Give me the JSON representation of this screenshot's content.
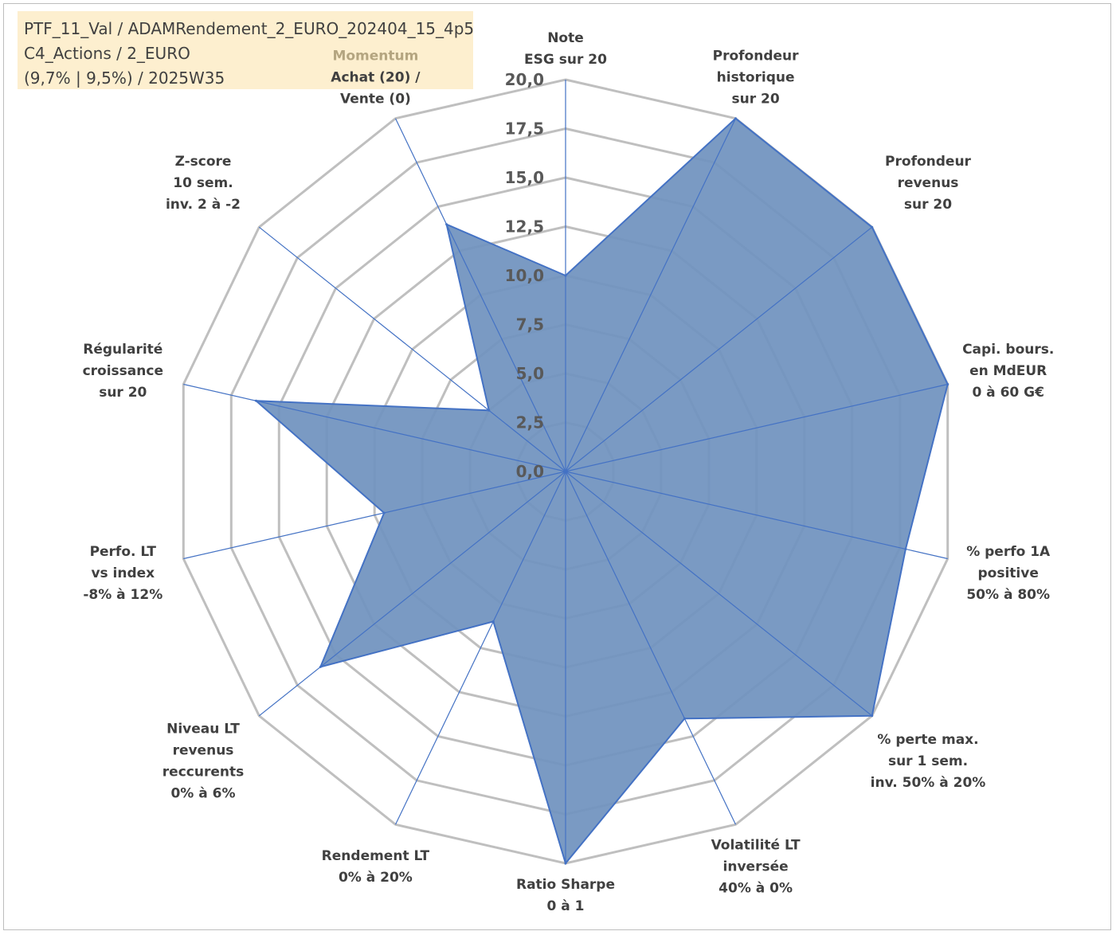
{
  "info_box": {
    "line1": "PTF_11_Val / ADAMRendement_2_EURO_202404_15_4p5",
    "line2": "C4_Actions / 2_EURO",
    "line3": "(9,7% | 9,5%) / 2025W35"
  },
  "colors": {
    "fill": "#7092be",
    "stroke": "#4472c4",
    "grid": "#bfbfbf",
    "spoke": "#4472c4",
    "label": "#404040",
    "accent_label": "#b4a580",
    "info_bg": "#fdefcf"
  },
  "chart_data": {
    "type": "radar",
    "rmin": 0,
    "rmax": 20,
    "tick_step": 2.5,
    "tick_labels": [
      "0,0",
      "2,5",
      "5,0",
      "7,5",
      "10,0",
      "12,5",
      "15,0",
      "17,5",
      "20,0"
    ],
    "axes": [
      {
        "lines": [
          "Note",
          "ESG sur 20"
        ],
        "value": 10.0
      },
      {
        "lines": [
          "Profondeur",
          "historique",
          "sur 20"
        ],
        "value": 20.0
      },
      {
        "lines": [
          "Profondeur",
          "revenus",
          "sur 20"
        ],
        "value": 20.0
      },
      {
        "lines": [
          "Capi. bours.",
          "en MdEUR",
          "0 à 60 G€"
        ],
        "value": 20.0
      },
      {
        "lines": [
          "% perfo 1A",
          "positive",
          "50% à 80%"
        ],
        "value": 17.8
      },
      {
        "lines": [
          "% perte max.",
          "sur 1 sem.",
          "inv. 50% à 20%"
        ],
        "value": 20.0
      },
      {
        "lines": [
          "Volatilité LT",
          "inversée",
          "40% à 0%"
        ],
        "value": 14.0
      },
      {
        "lines": [
          "Ratio Sharpe",
          "0 à 1"
        ],
        "value": 20.0
      },
      {
        "lines": [
          "Rendement LT",
          "0% à 20%"
        ],
        "value": 8.5
      },
      {
        "lines": [
          "Niveau LT",
          "revenus",
          "reccurents",
          "0% à 6%"
        ],
        "value": 16.0
      },
      {
        "lines": [
          "Perfo. LT",
          "vs index",
          "-8% à 12%"
        ],
        "value": 9.5
      },
      {
        "lines": [
          "Régularité",
          "croissance",
          "sur 20"
        ],
        "value": 16.2
      },
      {
        "lines": [
          "Z-score",
          "10 sem.",
          "inv. 2 à -2"
        ],
        "value": 5.0
      },
      {
        "lines": [
          "Momentum",
          "Achat (20) /",
          "Vente (0)"
        ],
        "value": 14.0
      }
    ]
  }
}
